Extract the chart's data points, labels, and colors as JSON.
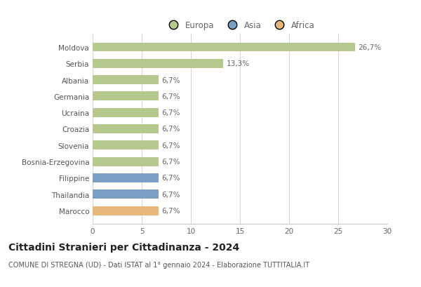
{
  "categories": [
    "Moldova",
    "Serbia",
    "Albania",
    "Germania",
    "Ucraina",
    "Croazia",
    "Slovenia",
    "Bosnia-Erzegovina",
    "Filippine",
    "Thailandia",
    "Marocco"
  ],
  "values": [
    26.7,
    13.3,
    6.7,
    6.7,
    6.7,
    6.7,
    6.7,
    6.7,
    6.7,
    6.7,
    6.7
  ],
  "labels": [
    "26,7%",
    "13,3%",
    "6,7%",
    "6,7%",
    "6,7%",
    "6,7%",
    "6,7%",
    "6,7%",
    "6,7%",
    "6,7%",
    "6,7%"
  ],
  "continents": [
    "Europa",
    "Europa",
    "Europa",
    "Europa",
    "Europa",
    "Europa",
    "Europa",
    "Europa",
    "Asia",
    "Asia",
    "Africa"
  ],
  "colors": {
    "Europa": "#b5c98e",
    "Asia": "#7b9fc4",
    "Africa": "#e8b87a"
  },
  "legend_colors": {
    "Europa": "#b5c98e",
    "Asia": "#7b9fc4",
    "Africa": "#e8b87a"
  },
  "xlim": [
    0,
    30
  ],
  "xticks": [
    0,
    5,
    10,
    15,
    20,
    25,
    30
  ],
  "title": "Cittadini Stranieri per Cittadinanza - 2024",
  "subtitle": "COMUNE DI STREGNA (UD) - Dati ISTAT al 1° gennaio 2024 - Elaborazione TUTTITALIA.IT",
  "background_color": "#ffffff",
  "bar_height": 0.55,
  "grid_color": "#cccccc",
  "label_fontsize": 7.5,
  "tick_fontsize": 7.5,
  "title_fontsize": 10,
  "subtitle_fontsize": 7
}
